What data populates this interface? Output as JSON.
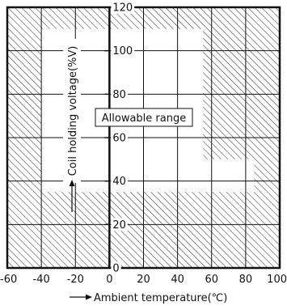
{
  "chart_data": {
    "type": "area",
    "title": "",
    "xlabel": "Ambient temperature(℃)",
    "ylabel": "Coil holding voltage(%V)",
    "xlim": [
      -60,
      100
    ],
    "ylim": [
      0,
      120
    ],
    "x_ticks": [
      -60,
      -40,
      -20,
      0,
      20,
      40,
      60,
      80,
      100
    ],
    "y_ticks": [
      0,
      20,
      40,
      60,
      80,
      100,
      120
    ],
    "grid": true,
    "hatched_background": true,
    "region_label": "Allowable range",
    "allowable_region": [
      {
        "x": -40,
        "y": 35
      },
      {
        "x": -40,
        "y": 110
      },
      {
        "x": 55,
        "y": 110
      },
      {
        "x": 55,
        "y": 50
      },
      {
        "x": 85,
        "y": 50
      },
      {
        "x": 85,
        "y": 35
      }
    ],
    "colors": {
      "line": "#111111",
      "background": "#ffffff",
      "hatch": "#111111"
    }
  }
}
